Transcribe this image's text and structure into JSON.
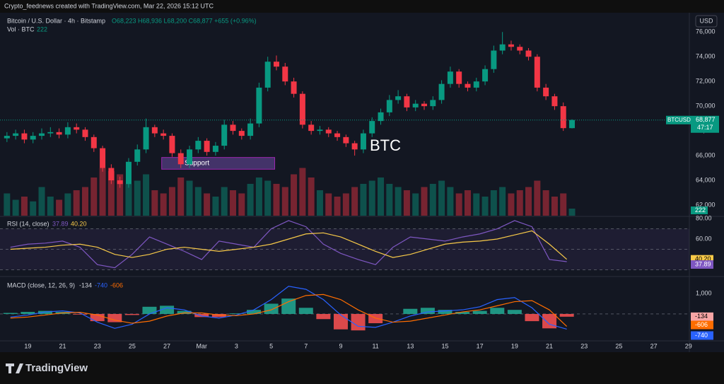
{
  "header": {
    "author": "Crypto_feednews created with TradingView.com, Mar 22, 2026 15:12 UTC",
    "symbol": "Bitcoin / U.S. Dollar · 4h · Bitstamp",
    "ohlc": "O68,223 H68,936 L68,200 C68,877 +655 (+0.96%)",
    "vol": "Vol · BTC",
    "currency": "USD",
    "brand": "TradingView"
  },
  "chart_data": {
    "type": "candlestick",
    "annotation": "BTC",
    "support": {
      "label": "Support",
      "x": [
        26.7,
        33.2
      ],
      "y": [
        64900,
        65850
      ]
    },
    "up_color": "#089981",
    "down_color": "#f23645",
    "x": [
      17.8,
      18.3,
      18.8,
      19.3,
      19.8,
      20.3,
      20.8,
      21.3,
      21.8,
      22.3,
      22.8,
      23.3,
      23.8,
      24.3,
      24.8,
      25.3,
      25.8,
      26.3,
      26.8,
      27.3,
      27.8,
      28.3,
      28.8,
      29.3,
      29.8,
      30.3,
      30.8,
      31.3,
      31.8,
      32.3,
      32.8,
      33.3,
      33.8,
      34.3,
      34.8,
      35.3,
      35.8,
      36.3,
      36.8,
      37.3,
      37.8,
      38.3,
      38.8,
      39.3,
      39.8,
      40.3,
      40.8,
      41.3,
      41.8,
      42.3,
      42.8,
      43.3,
      43.8,
      44.3,
      44.8,
      45.3,
      45.8,
      46.3,
      46.8,
      47.3,
      47.8,
      48.3,
      48.8,
      49.3,
      49.8,
      50.3
    ],
    "open": [
      67400,
      67600,
      67800,
      67300,
      67600,
      67800,
      67900,
      67700,
      68300,
      68100,
      67500,
      66600,
      65000,
      64000,
      63700,
      65500,
      66500,
      68300,
      67800,
      67600,
      66200,
      65300,
      66500,
      67200,
      66300,
      66800,
      68500,
      68000,
      67600,
      68600,
      71500,
      73600,
      73200,
      72000,
      71000,
      68500,
      68000,
      68100,
      67800,
      67500,
      67000,
      66500,
      67800,
      68800,
      69500,
      70500,
      70800,
      69900,
      70200,
      70000,
      70500,
      71800,
      72800,
      71800,
      71500,
      72000,
      73000,
      74500,
      75000,
      74800,
      74500,
      74000,
      71500,
      70800,
      70000,
      68223
    ],
    "high": [
      67900,
      68100,
      68100,
      67900,
      68200,
      68300,
      68200,
      68700,
      68600,
      68300,
      67700,
      66800,
      65300,
      64300,
      65800,
      66900,
      69000,
      68500,
      68100,
      67800,
      66500,
      66800,
      67500,
      67400,
      67100,
      68900,
      68800,
      68200,
      69000,
      71900,
      74000,
      74100,
      73500,
      72300,
      71200,
      68800,
      68400,
      68300,
      68000,
      67700,
      67200,
      68100,
      69100,
      69800,
      70900,
      71300,
      71000,
      70500,
      70400,
      70800,
      72100,
      73200,
      73000,
      72000,
      72300,
      73300,
      74900,
      76000,
      75300,
      75000,
      74700,
      74200,
      71800,
      71000,
      70300,
      68936
    ],
    "low": [
      67100,
      67300,
      67000,
      67000,
      67300,
      67500,
      67400,
      67400,
      67800,
      67200,
      66300,
      64700,
      63700,
      63400,
      63400,
      65200,
      66200,
      67500,
      67300,
      65900,
      65000,
      65000,
      66200,
      66000,
      66000,
      66500,
      67700,
      67300,
      67300,
      68300,
      71200,
      72900,
      71700,
      70700,
      68200,
      67700,
      67700,
      67500,
      67200,
      66700,
      66000,
      66200,
      67500,
      68500,
      69200,
      70200,
      69600,
      69600,
      69700,
      69700,
      70200,
      71500,
      71500,
      71200,
      71200,
      71700,
      72700,
      74200,
      74500,
      74200,
      73700,
      71200,
      70500,
      69700,
      68000,
      68200
    ],
    "close": [
      67600,
      67800,
      67300,
      67600,
      67800,
      67900,
      67700,
      68300,
      68100,
      67500,
      66600,
      65000,
      64000,
      63700,
      65500,
      66500,
      68300,
      67800,
      67600,
      66200,
      65300,
      66500,
      67200,
      66300,
      66800,
      68500,
      68000,
      67600,
      68600,
      71500,
      73600,
      73200,
      72000,
      71000,
      68500,
      68000,
      68100,
      67800,
      67500,
      67000,
      66500,
      67800,
      68800,
      69500,
      70500,
      70800,
      69900,
      70200,
      70000,
      70500,
      71800,
      72800,
      71800,
      71500,
      72000,
      73000,
      74500,
      75000,
      74800,
      74500,
      74000,
      71500,
      70800,
      70000,
      68223,
      68877
    ],
    "last_price": {
      "value": 68877,
      "label": "68,877"
    },
    "symbol_tag": "BTCUSD",
    "countdown": "47:17",
    "xlim": [
      17.4,
      57.05
    ],
    "xticks": [
      19,
      21,
      23,
      25,
      27,
      {
        "value": 29,
        "label": "Mar"
      },
      {
        "value": 31,
        "label": "3"
      },
      {
        "value": 33,
        "label": "5"
      },
      {
        "value": 35,
        "label": "7"
      },
      {
        "value": 37,
        "label": "9"
      },
      {
        "value": 39,
        "label": "11"
      },
      {
        "value": 41,
        "label": "13"
      },
      {
        "value": 43,
        "label": "15"
      },
      {
        "value": 45,
        "label": "17"
      },
      {
        "value": 47,
        "label": "19"
      },
      {
        "value": 49,
        "label": "21"
      },
      {
        "value": 51,
        "label": "23"
      },
      {
        "value": 53,
        "label": "25"
      },
      {
        "value": 55,
        "label": "27"
      },
      {
        "value": 57,
        "label": "29"
      }
    ],
    "ylim": [
      61140,
      77560
    ],
    "yticks": [
      {
        "value": 62000,
        "label": "62,000"
      },
      {
        "value": 64000,
        "label": "64,000"
      },
      {
        "value": 66000,
        "label": "66,000"
      },
      {
        "value": 68000,
        "label": "68,000"
      },
      {
        "value": 70000,
        "label": "70,000"
      },
      {
        "value": 72000,
        "label": "72,000"
      },
      {
        "value": 74000,
        "label": "74,000"
      },
      {
        "value": 76000,
        "label": "76,000"
      }
    ],
    "volume": {
      "values": [
        700,
        500,
        600,
        450,
        900,
        600,
        500,
        700,
        800,
        900,
        1200,
        1500,
        1400,
        1300,
        1000,
        1100,
        1300,
        800,
        700,
        900,
        1200,
        1100,
        900,
        700,
        600,
        900,
        800,
        700,
        1000,
        1200,
        1100,
        1000,
        900,
        1300,
        1500,
        1200,
        800,
        700,
        600,
        700,
        900,
        1000,
        1100,
        1200,
        1000,
        900,
        800,
        700,
        900,
        1000,
        1100,
        900,
        700,
        800,
        700,
        600,
        800,
        900,
        700,
        800,
        900,
        1100,
        800,
        600,
        700,
        222
      ],
      "ylim": [
        0,
        6000
      ]
    },
    "x_daily": [
      18,
      19,
      20,
      21,
      22,
      23,
      24,
      25,
      26,
      27,
      28,
      29,
      30,
      31,
      32,
      33,
      34,
      35,
      36,
      37,
      38,
      39,
      40,
      41,
      42,
      43,
      44,
      45,
      46,
      47,
      48,
      49,
      50
    ],
    "rsi": {
      "title": "RSI (14, close)",
      "ylim": [
        24.1,
        81.4
      ],
      "yticks": [
        {
          "value": 80,
          "label": "80.00"
        },
        {
          "value": 60,
          "label": "60.00"
        }
      ],
      "levels": [
        70,
        50,
        30
      ],
      "series": [
        {
          "color": "#7e57c2",
          "values": [
            52,
            55,
            56,
            58,
            52,
            35,
            32,
            45,
            62,
            55,
            48,
            40,
            58,
            55,
            52,
            70,
            78,
            72,
            55,
            46,
            40,
            35,
            52,
            62,
            60,
            58,
            62,
            65,
            70,
            78,
            72,
            40,
            37.89
          ],
          "last_label": "37.89"
        },
        {
          "color": "#f7c948",
          "values": [
            50,
            51,
            52,
            54,
            55,
            52,
            45,
            42,
            45,
            50,
            52,
            50,
            48,
            50,
            52,
            55,
            60,
            65,
            66,
            62,
            55,
            48,
            42,
            45,
            50,
            55,
            57,
            58,
            60,
            64,
            68,
            55,
            40.2
          ],
          "last_label": "40.20"
        }
      ]
    },
    "macd": {
      "title": "MACD (close, 12, 26, 9)",
      "ylim": [
        -1310,
        1790
      ],
      "yticks": [
        {
          "value": 1000,
          "label": "1,000"
        }
      ],
      "histogram": {
        "up_color": "#22ab94",
        "down_color": "#ff5252",
        "box_color": "#f7a5a5",
        "values": [
          50,
          100,
          150,
          100,
          -30,
          -350,
          -400,
          -50,
          350,
          400,
          150,
          -150,
          -150,
          30,
          200,
          500,
          750,
          300,
          -250,
          -750,
          -800,
          -450,
          0,
          250,
          300,
          200,
          100,
          150,
          300,
          200,
          -350,
          -700,
          -134
        ]
      },
      "series": [
        {
          "color": "#2962ff",
          "values": [
            -150,
            -50,
            100,
            150,
            50,
            -400,
            -700,
            -500,
            0,
            300,
            200,
            -100,
            -200,
            -50,
            200,
            700,
            1350,
            1200,
            700,
            -50,
            -600,
            -650,
            -400,
            -100,
            100,
            150,
            200,
            350,
            700,
            800,
            300,
            -500,
            -740
          ]
        },
        {
          "color": "#ff6d00",
          "values": [
            -200,
            -150,
            -50,
            50,
            80,
            -50,
            -300,
            -450,
            -350,
            -100,
            50,
            50,
            -50,
            -80,
            0,
            200,
            600,
            900,
            950,
            700,
            200,
            -200,
            -400,
            -350,
            -200,
            -50,
            100,
            200,
            400,
            600,
            650,
            200,
            -606
          ]
        }
      ]
    }
  }
}
